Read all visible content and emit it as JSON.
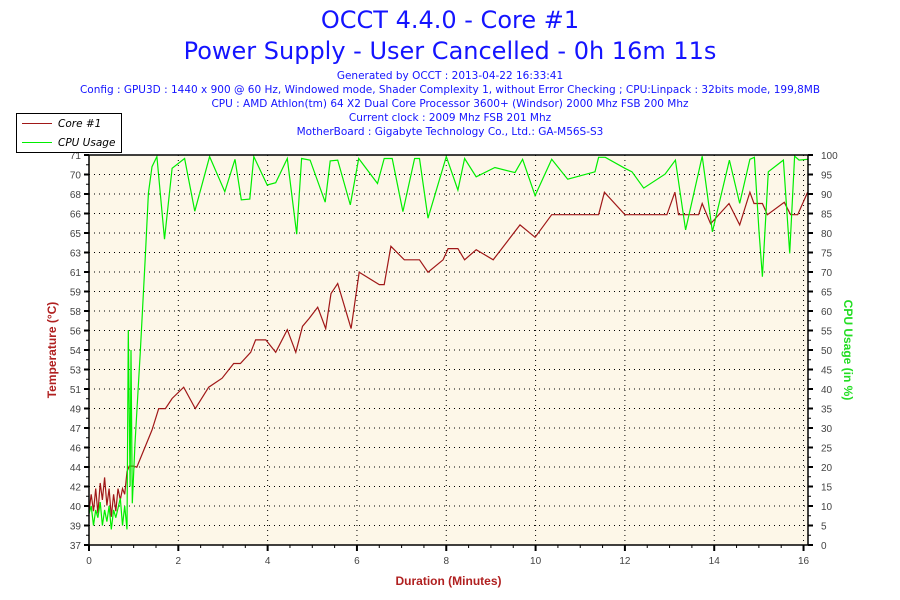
{
  "header": {
    "title": "OCCT 4.4.0 - Core #1",
    "subtitle": "Power Supply - User Cancelled - 0h 16m 11s",
    "generated": "Generated by OCCT : 2013-04-22 16:33:41",
    "config": "Config : GPU3D : 1440 x 900 @ 60 Hz, Windowed mode, Shader Complexity 1, without Error Checking ; CPU:Linpack : 32bits mode, 199,8MB",
    "cpu": "CPU : AMD Athlon(tm) 64 X2 Dual Core Processor 3600+ (Windsor) 2000 Mhz FSB 200 Mhz",
    "clock": "Current clock : 2009 Mhz FSB 201 Mhz",
    "motherboard": "MotherBoard : Gigabyte Technology Co., Ltd.: GA-M56S-S3"
  },
  "colors": {
    "text": "#1414ff",
    "temp": "#a01818",
    "cpu": "#00ee00",
    "plot_bg": "#fdf7e8",
    "left_axis_label": "#b02020",
    "right_axis_label": "#22dd22"
  },
  "chart_data": {
    "type": "line",
    "xlabel": "Duration (Minutes)",
    "ylabel": "Temperature (°C)",
    "y2label": "CPU Usage (in %)",
    "xlim": [
      0,
      16.1
    ],
    "ylim": [
      37,
      71.6
    ],
    "y2lim": [
      0,
      100
    ],
    "grid": true,
    "legend_position": "top-left",
    "x_ticks": [
      "0",
      "2",
      "4",
      "6",
      "8",
      "10",
      "12",
      "14",
      "16"
    ],
    "y_ticks": [
      "37",
      "39",
      "40",
      "42",
      "44",
      "46",
      "47",
      "49",
      "51",
      "53",
      "54",
      "56",
      "58",
      "59",
      "61",
      "63",
      "65",
      "66",
      "68",
      "70",
      "71"
    ],
    "y2_ticks": [
      "0",
      "5",
      "10",
      "15",
      "20",
      "25",
      "30",
      "35",
      "40",
      "45",
      "50",
      "55",
      "60",
      "65",
      "70",
      "75",
      "80",
      "85",
      "90",
      "95",
      "100"
    ],
    "series": [
      {
        "name": "Core #1",
        "axis": "left",
        "x": [
          0,
          0.05,
          0.1,
          0.15,
          0.2,
          0.25,
          0.3,
          0.35,
          0.4,
          0.45,
          0.5,
          0.55,
          0.6,
          0.65,
          0.7,
          0.75,
          0.8,
          0.85,
          0.9,
          1.0,
          1.07,
          1.41,
          1.56,
          1.71,
          1.86,
          2.12,
          2.38,
          2.68,
          2.98,
          3.24,
          3.39,
          3.62,
          3.73,
          3.96,
          4.18,
          4.44,
          4.63,
          4.78,
          4.93,
          5.12,
          5.3,
          5.42,
          5.57,
          5.87,
          6.05,
          6.5,
          6.61,
          6.76,
          7.06,
          7.4,
          7.59,
          7.93,
          8.04,
          8.26,
          8.41,
          8.67,
          9.05,
          9.65,
          9.99,
          10.36,
          11.41,
          11.54,
          12.0,
          12.53,
          12.94,
          13.12,
          13.2,
          13.65,
          13.73,
          13.92,
          14.33,
          14.57,
          14.8,
          14.89,
          15.08,
          15.19,
          15.57,
          15.71,
          15.87,
          16.09
        ],
        "y": [
          40,
          41.5,
          40,
          42,
          39.8,
          42.5,
          41,
          43,
          40.5,
          42,
          39.5,
          41.5,
          40,
          42,
          41,
          42,
          41.5,
          43.5,
          44,
          44,
          43.9,
          47.2,
          49.1,
          49.1,
          50.0,
          51.0,
          49.1,
          51.0,
          51.8,
          53.1,
          53.1,
          54.1,
          55.2,
          55.2,
          54.1,
          56.1,
          54.1,
          56.4,
          57.1,
          58.1,
          56.2,
          59.3,
          60.2,
          56.2,
          61.2,
          60.1,
          60.1,
          63.5,
          62.3,
          62.3,
          61.2,
          62.3,
          63.3,
          63.3,
          62.3,
          63.2,
          62.3,
          65.4,
          64.3,
          66.3,
          66.3,
          68.3,
          66.3,
          66.3,
          66.3,
          68.3,
          66.3,
          66.3,
          67.3,
          65.5,
          67.3,
          65.4,
          68.3,
          67.3,
          67.3,
          66.3,
          67.4,
          66.3,
          66.3,
          68.3
        ]
      },
      {
        "name": "CPU Usage",
        "axis": "right",
        "x": [
          0,
          0.05,
          0.1,
          0.15,
          0.2,
          0.25,
          0.3,
          0.35,
          0.4,
          0.45,
          0.5,
          0.55,
          0.6,
          0.7,
          0.75,
          0.8,
          0.85,
          0.88,
          0.92,
          0.94,
          0.97,
          1.03,
          1.15,
          1.26,
          1.33,
          1.41,
          1.52,
          1.69,
          1.86,
          2.14,
          2.37,
          2.7,
          3.04,
          3.27,
          3.41,
          3.6,
          3.69,
          3.99,
          4.18,
          4.44,
          4.65,
          4.76,
          4.95,
          5.29,
          5.4,
          5.57,
          5.85,
          6.04,
          6.46,
          6.61,
          6.79,
          7.03,
          7.29,
          7.4,
          7.59,
          8.0,
          8.26,
          8.41,
          8.67,
          9.09,
          9.54,
          9.71,
          9.99,
          10.36,
          10.72,
          11.33,
          11.41,
          11.56,
          12.0,
          12.16,
          12.42,
          12.9,
          13.13,
          13.36,
          13.73,
          13.96,
          14.34,
          14.57,
          14.8,
          14.9,
          15.0,
          15.08,
          15.21,
          15.55,
          15.69,
          15.8,
          15.9,
          16.09
        ],
        "y": [
          8,
          10,
          5,
          9,
          7,
          11,
          5,
          9,
          6,
          10,
          4,
          9,
          7,
          12,
          5,
          10,
          4,
          55.1,
          15,
          50,
          10.7,
          26,
          50,
          73.9,
          90.2,
          97,
          99.6,
          78.4,
          96.6,
          99.1,
          85.6,
          99.6,
          90.6,
          98.9,
          88.5,
          88.7,
          99.6,
          92.3,
          92.9,
          99.1,
          79.7,
          99.1,
          98.7,
          87.9,
          98.5,
          98.7,
          87.2,
          99.1,
          92.7,
          99.1,
          99.1,
          85.5,
          99.1,
          99.1,
          83.8,
          99.6,
          91,
          99.1,
          94.4,
          96.8,
          95.5,
          98.9,
          89.6,
          98.9,
          93.8,
          95.7,
          99.4,
          99.4,
          96.6,
          95.7,
          91.5,
          95.1,
          98.7,
          80.8,
          99.7,
          80.3,
          98.7,
          87.6,
          98.9,
          99.4,
          80.8,
          68.8,
          95.7,
          98.7,
          74.8,
          99.7,
          98.7,
          98.9
        ]
      }
    ]
  }
}
